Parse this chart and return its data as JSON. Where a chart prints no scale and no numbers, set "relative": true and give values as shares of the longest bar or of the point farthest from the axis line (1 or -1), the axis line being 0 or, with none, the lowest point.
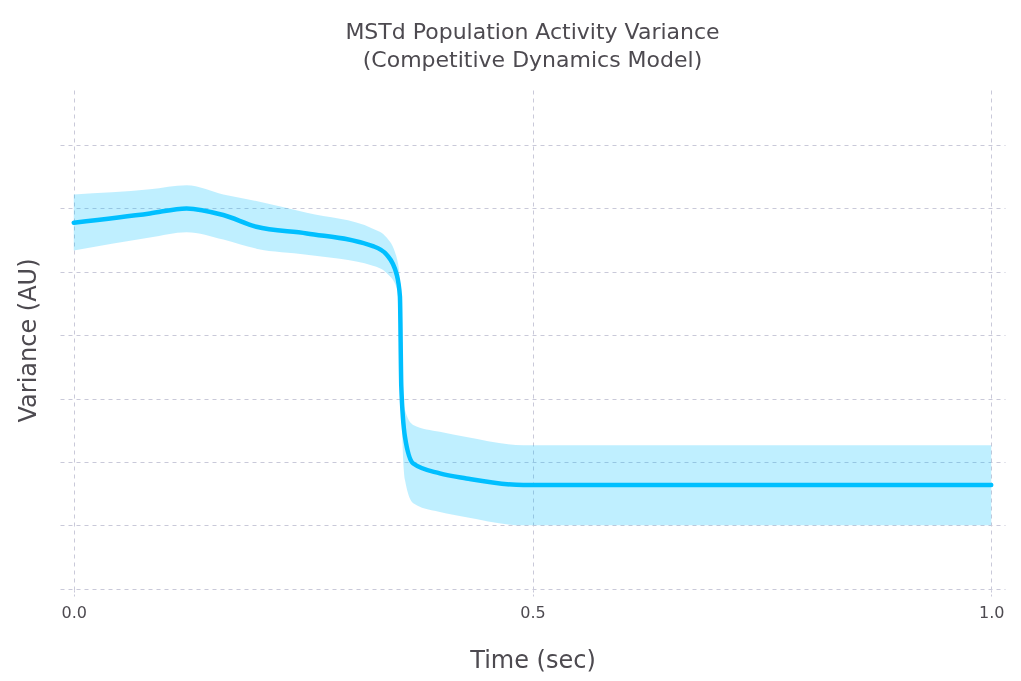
{
  "chart_data": {
    "type": "line",
    "title": [
      "MSTd Population Activity Variance",
      "(Competitive Dynamics Model)"
    ],
    "xlabel": "Time (sec)",
    "ylabel": "Variance (AU)",
    "relative": true,
    "grid": true,
    "tick_labels": "x",
    "line_style": "solid",
    "x": [
      0,
      0.083,
      0.123,
      0.163,
      0.199,
      0.254,
      0.326,
      0.341,
      0.352,
      0.3555,
      0.357,
      0.361,
      0.37,
      0.399,
      0.428,
      0.49,
      0.7,
      1.0
    ],
    "xlim": [
      -0.015,
      1.015
    ],
    "xticks": [
      {
        "value": 0,
        "label": "0.0"
      },
      {
        "value": 0.5,
        "label": "0.5"
      },
      {
        "value": 1,
        "label": "1.0"
      }
    ],
    "series": [
      {
        "color": "#00bfff",
        "values": [
          0.955,
          0.984,
          1,
          0.979,
          0.942,
          0.921,
          0.881,
          0.854,
          0.791,
          0.722,
          0.438,
          0.279,
          0.195,
          0.164,
          0.148,
          0.127,
          0.127,
          0.127
        ],
        "lower": [
          0.867,
          0.908,
          0.925,
          0.902,
          0.873,
          0.854,
          0.819,
          0.796,
          0.749,
          0.7,
          0.397,
          0.143,
          0.07,
          0.042,
          0.026,
          0,
          0,
          0
        ],
        "upper": [
          1.044,
          1.06,
          1.073,
          1.044,
          1.023,
          0.986,
          0.936,
          0.908,
          0.844,
          0.776,
          0.483,
          0.364,
          0.317,
          0.295,
          0.279,
          0.253,
          0.253,
          0.253
        ]
      }
    ]
  }
}
